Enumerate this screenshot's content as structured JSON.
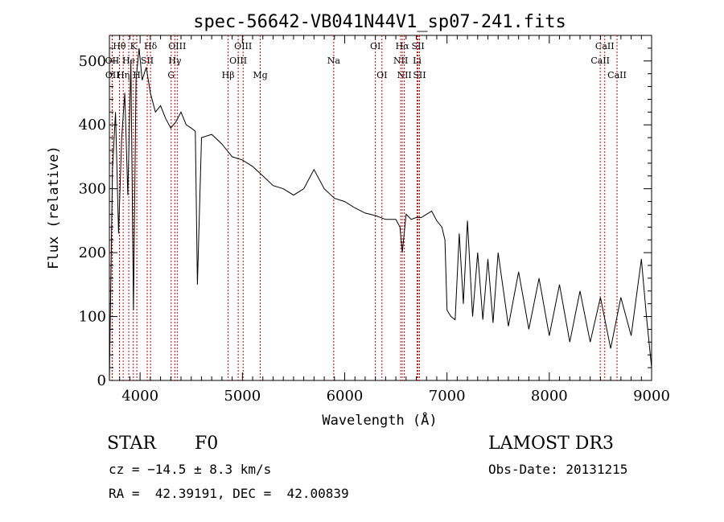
{
  "chart_data": {
    "type": "line",
    "title": "spec-56642-VB041N44V1_sp07-241.fits",
    "xlabel": "Wavelength (Å)",
    "ylabel": "Flux (relative)",
    "xlim": [
      3700,
      9000
    ],
    "ylim": [
      0,
      540
    ],
    "xticks": [
      4000,
      5000,
      6000,
      7000,
      8000,
      9000
    ],
    "yticks": [
      0,
      100,
      200,
      300,
      400,
      500
    ],
    "grid": false,
    "series": [
      {
        "name": "flux",
        "x": [
          3700,
          3730,
          3760,
          3790,
          3820,
          3850,
          3880,
          3910,
          3935,
          3960,
          3990,
          4020,
          4060,
          4100,
          4150,
          4200,
          4250,
          4300,
          4350,
          4400,
          4450,
          4500,
          4540,
          4560,
          4600,
          4700,
          4800,
          4900,
          5000,
          5100,
          5200,
          5300,
          5400,
          5500,
          5600,
          5700,
          5800,
          5900,
          6000,
          6100,
          6200,
          6300,
          6400,
          6500,
          6540,
          6563,
          6600,
          6650,
          6700,
          6750,
          6800,
          6850,
          6900,
          6950,
          6980,
          7000,
          7040,
          7080,
          7120,
          7160,
          7200,
          7250,
          7300,
          7350,
          7400,
          7450,
          7500,
          7600,
          7700,
          7800,
          7900,
          8000,
          8100,
          8200,
          8300,
          8400,
          8500,
          8600,
          8700,
          8800,
          8900,
          8950,
          9000
        ],
        "y": [
          0,
          330,
          420,
          230,
          380,
          450,
          290,
          500,
          110,
          470,
          520,
          470,
          490,
          450,
          420,
          430,
          410,
          395,
          405,
          420,
          400,
          395,
          390,
          150,
          380,
          385,
          370,
          350,
          345,
          335,
          320,
          305,
          300,
          290,
          300,
          330,
          300,
          285,
          280,
          270,
          262,
          258,
          252,
          252,
          240,
          200,
          260,
          252,
          255,
          255,
          260,
          265,
          250,
          240,
          220,
          110,
          100,
          95,
          230,
          120,
          250,
          100,
          200,
          95,
          190,
          90,
          200,
          85,
          170,
          80,
          160,
          70,
          150,
          60,
          140,
          60,
          130,
          50,
          130,
          70,
          190,
          100,
          20
        ]
      }
    ],
    "annotations": [
      {
        "label": "Hθ",
        "x": 3798,
        "row": 1
      },
      {
        "label": "K",
        "x": 3934,
        "row": 1
      },
      {
        "label": "Hδ",
        "x": 4102,
        "row": 1
      },
      {
        "label": "OIII",
        "x": 4363,
        "row": 1
      },
      {
        "label": "OIII",
        "x": 5007,
        "row": 1
      },
      {
        "label": "OI",
        "x": 6300,
        "row": 1
      },
      {
        "label": "Hα",
        "x": 6563,
        "row": 1
      },
      {
        "label": "SII",
        "x": 6717,
        "row": 1
      },
      {
        "label": "CaII",
        "x": 8542,
        "row": 1
      },
      {
        "label": "OII",
        "x": 3727,
        "row": 2
      },
      {
        "label": "He",
        "x": 3889,
        "row": 2
      },
      {
        "label": "SII",
        "x": 4070,
        "row": 2
      },
      {
        "label": "Hγ",
        "x": 4340,
        "row": 2
      },
      {
        "label": "OIII",
        "x": 4959,
        "row": 2
      },
      {
        "label": "Na",
        "x": 5893,
        "row": 2
      },
      {
        "label": "NII",
        "x": 6548,
        "row": 2
      },
      {
        "label": "Li",
        "x": 6708,
        "row": 2
      },
      {
        "label": "CaII",
        "x": 8498,
        "row": 2
      },
      {
        "label": "OII",
        "x": 3729,
        "row": 3
      },
      {
        "label": "Hη",
        "x": 3835,
        "row": 3
      },
      {
        "label": "H",
        "x": 3968,
        "row": 3
      },
      {
        "label": "G",
        "x": 4304,
        "row": 3
      },
      {
        "label": "Hβ",
        "x": 4861,
        "row": 3
      },
      {
        "label": "Mg",
        "x": 5175,
        "row": 3
      },
      {
        "label": "OI",
        "x": 6364,
        "row": 3
      },
      {
        "label": "NII",
        "x": 6583,
        "row": 3
      },
      {
        "label": "SII",
        "x": 6731,
        "row": 3
      },
      {
        "label": "CaII",
        "x": 8662,
        "row": 3
      }
    ]
  },
  "info": {
    "object_class": "STAR",
    "subclass": "F0",
    "survey": "LAMOST DR3",
    "cz": "cz = −14.5 ± 8.3 km/s",
    "obs_date": "Obs-Date: 20131215",
    "coords": "RA =  42.39191, DEC =  42.00839"
  },
  "colors": {
    "line": "#000000",
    "marker": "#cc0000",
    "axis": "#000000"
  }
}
